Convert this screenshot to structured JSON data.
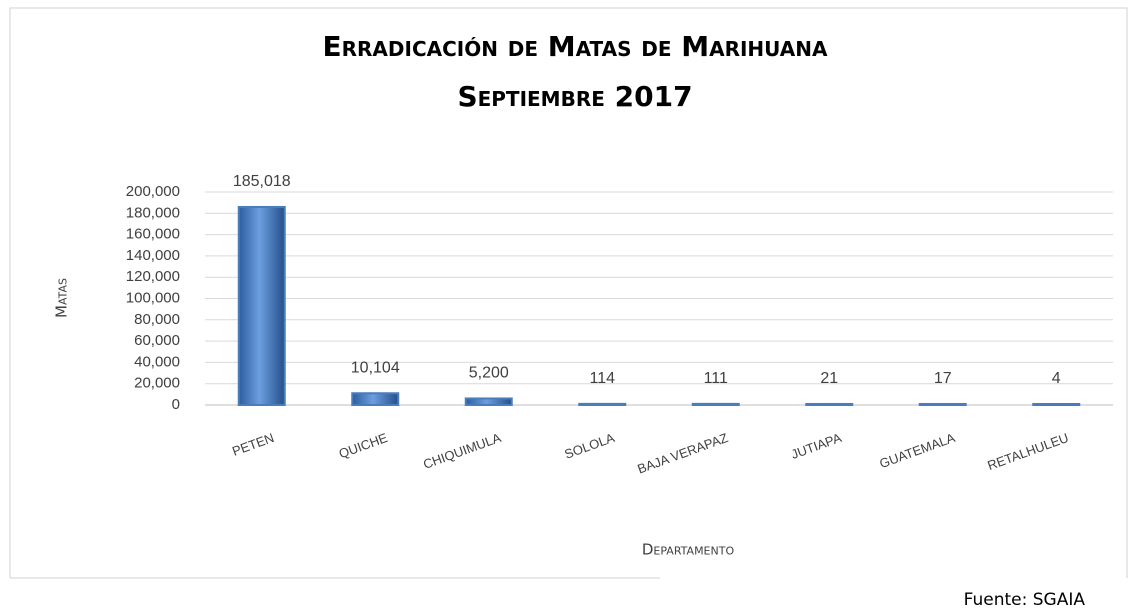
{
  "chart_data": {
    "type": "bar",
    "title": "Erradicación de Matas de Marihuana",
    "subtitle": "Septiembre 2017",
    "y_label": "Matas",
    "x_label": "Departamento",
    "source": "Fuente: SGAIA",
    "categories": [
      "PETEN",
      "QUICHE",
      "CHIQUIMULA",
      "SOLOLA",
      "BAJA VERAPAZ",
      "JUTIAPA",
      "GUATEMALA",
      "RETALHULEU"
    ],
    "values": [
      185018,
      10104,
      5200,
      114,
      111,
      21,
      17,
      4
    ],
    "value_labels": [
      "185,018",
      "10,104",
      "5,200",
      "114",
      "111",
      "21",
      "17",
      "4"
    ],
    "color": "#4a7ebb",
    "ylim": [
      0,
      200000
    ],
    "yticks": [
      0,
      {
        "value": 20000,
        "label": "20,000"
      },
      {
        "value": 40000,
        "label": "40,000"
      },
      {
        "value": 60000,
        "label": "60,000"
      },
      {
        "value": 80000,
        "label": "80,000"
      },
      {
        "value": 100000,
        "label": "100,000"
      },
      {
        "value": 120000,
        "label": "120,000"
      },
      {
        "value": 140000,
        "label": "140,000"
      },
      {
        "value": 160000,
        "label": "160,000"
      },
      {
        "value": 180000,
        "label": "180,000"
      },
      {
        "value": 200000,
        "label": "200,000"
      }
    ],
    "grid": true
  }
}
